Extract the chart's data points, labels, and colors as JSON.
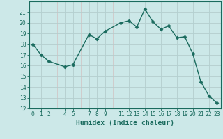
{
  "x": [
    0,
    1,
    2,
    4,
    5,
    7,
    8,
    9,
    11,
    12,
    13,
    14,
    15,
    16,
    17,
    18,
    19,
    20,
    21,
    22,
    23
  ],
  "y": [
    18,
    17,
    16.4,
    15.9,
    16.1,
    18.9,
    18.5,
    19.2,
    20.0,
    20.2,
    19.6,
    21.3,
    20.1,
    19.4,
    19.7,
    18.6,
    18.7,
    17.1,
    14.5,
    13.2,
    12.5
  ],
  "line_color": "#1a6b5e",
  "marker": "D",
  "marker_size": 2.5,
  "bg_color": "#cce8e8",
  "grid_minor_color": "#aed4d4",
  "grid_major_color": "#d4b0b0",
  "xlabel": "Humidex (Indice chaleur)",
  "ylim": [
    12,
    22
  ],
  "xlim": [
    -0.5,
    23.5
  ],
  "yticks": [
    12,
    13,
    14,
    15,
    16,
    17,
    18,
    19,
    20,
    21
  ],
  "xticks": [
    0,
    1,
    2,
    4,
    5,
    7,
    8,
    9,
    11,
    12,
    13,
    14,
    15,
    16,
    17,
    18,
    19,
    20,
    21,
    22,
    23
  ],
  "all_xticks": [
    0,
    1,
    2,
    3,
    4,
    5,
    6,
    7,
    8,
    9,
    10,
    11,
    12,
    13,
    14,
    15,
    16,
    17,
    18,
    19,
    20,
    21,
    22,
    23
  ],
  "tick_label_fontsize": 5.8,
  "xlabel_fontsize": 7.0,
  "tick_color": "#1a6b5e",
  "axis_color": "#1a6b5e",
  "linewidth": 1.0
}
